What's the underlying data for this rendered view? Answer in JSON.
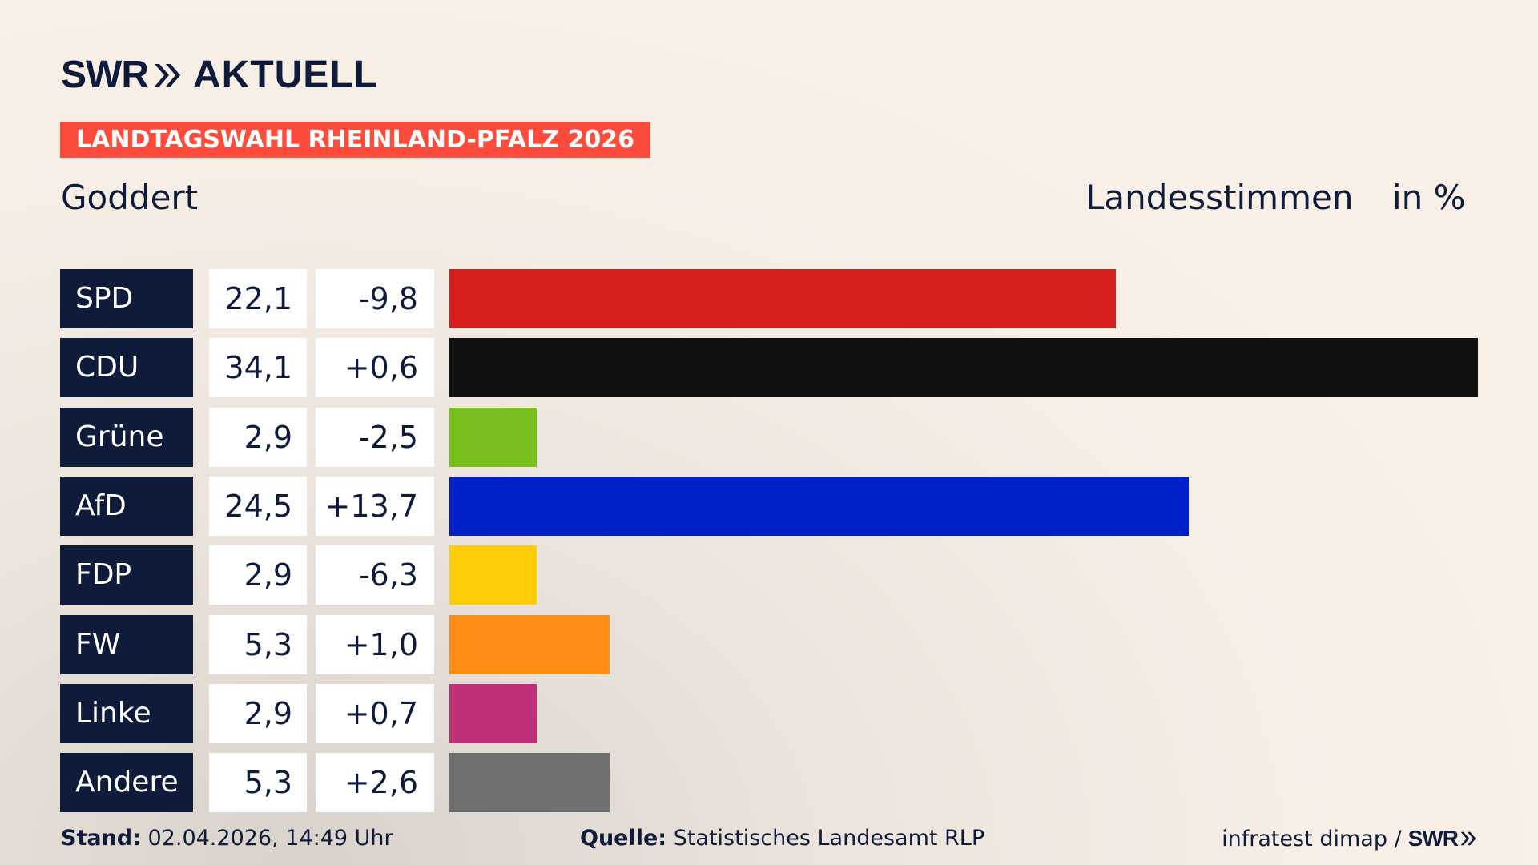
{
  "brand": {
    "logo_left": "SWR",
    "logo_right": "AKTUELL",
    "footer_logo": "SWR"
  },
  "banner": "LANDTAGSWAHL RHEINLAND-PFALZ 2026",
  "subtitle": "Goddert",
  "measure": "Landesstimmen",
  "unit": "in %",
  "footer": {
    "stand_label": "Stand:",
    "stand_value": "02.04.2026, 14:49 Uhr",
    "quelle_label": "Quelle:",
    "quelle_value": "Statistisches Landesamt RLP",
    "credit": "infratest dimap /"
  },
  "colors": {
    "navy": "#0e1b3a",
    "accent": "#fd4c3b"
  },
  "chart_data": {
    "type": "bar",
    "orientation": "horizontal",
    "categories": [
      "SPD",
      "CDU",
      "Grüne",
      "AfD",
      "FDP",
      "FW",
      "Linke",
      "Andere"
    ],
    "values": [
      22.1,
      34.1,
      2.9,
      24.5,
      2.9,
      5.3,
      2.9,
      5.3
    ],
    "value_labels": [
      "22,1",
      "34,1",
      "2,9",
      "24,5",
      "2,9",
      "5,3",
      "2,9",
      "5,3"
    ],
    "diff_labels": [
      "-9,8",
      "+0,6",
      "-2,5",
      "+13,7",
      "-6,3",
      "+1,0",
      "+0,7",
      "+2,6"
    ],
    "diffs": [
      -9.8,
      0.6,
      -2.5,
      13.7,
      -6.3,
      1.0,
      0.7,
      2.6
    ],
    "bar_colors": [
      "#d81f1f",
      "#111111",
      "#79bf1e",
      "#0021c8",
      "#ffcd07",
      "#fe8c15",
      "#be2f77",
      "#6f7072"
    ],
    "xlim": [
      0,
      34.1
    ],
    "grid": false
  }
}
